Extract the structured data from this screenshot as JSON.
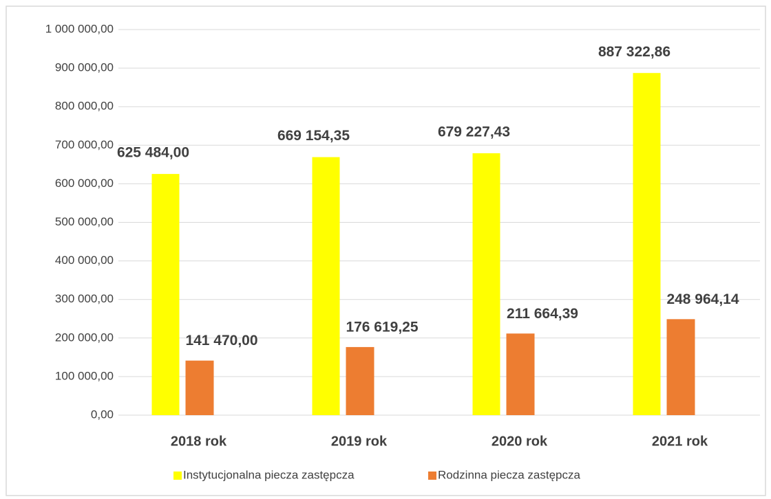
{
  "chart_data": {
    "type": "bar",
    "categories": [
      "2018 rok",
      "2019 rok",
      "2020 rok",
      "2021 rok"
    ],
    "series": [
      {
        "name": "Instytucjonalna piecza zastępcza",
        "color": "#ffff00",
        "values": [
          625484.0,
          669154.35,
          679227.43,
          887322.86
        ],
        "value_labels": [
          "625 484,00",
          "669 154,35",
          "679 227,43",
          "887 322,86"
        ]
      },
      {
        "name": "Rodzinna piecza zastępcza",
        "color": "#ed7d31",
        "values": [
          141470.0,
          176619.25,
          211664.39,
          248964.14
        ],
        "value_labels": [
          "141 470,00",
          "176 619,25",
          "211 664,39",
          "248 964,14"
        ]
      }
    ],
    "ylim": [
      0,
      1000000
    ],
    "yticks": [
      {
        "value": 0,
        "label": "0,00"
      },
      {
        "value": 100000,
        "label": "100 000,00"
      },
      {
        "value": 200000,
        "label": "200 000,00"
      },
      {
        "value": 300000,
        "label": "300 000,00"
      },
      {
        "value": 400000,
        "label": "400 000,00"
      },
      {
        "value": 500000,
        "label": "500 000,00"
      },
      {
        "value": 600000,
        "label": "600 000,00"
      },
      {
        "value": 700000,
        "label": "700 000,00"
      },
      {
        "value": 800000,
        "label": "800 000,00"
      },
      {
        "value": 900000,
        "label": "900 000,00"
      },
      {
        "value": 1000000,
        "label": "1 000 000,00"
      }
    ],
    "grid": true,
    "legend": "bottom"
  }
}
